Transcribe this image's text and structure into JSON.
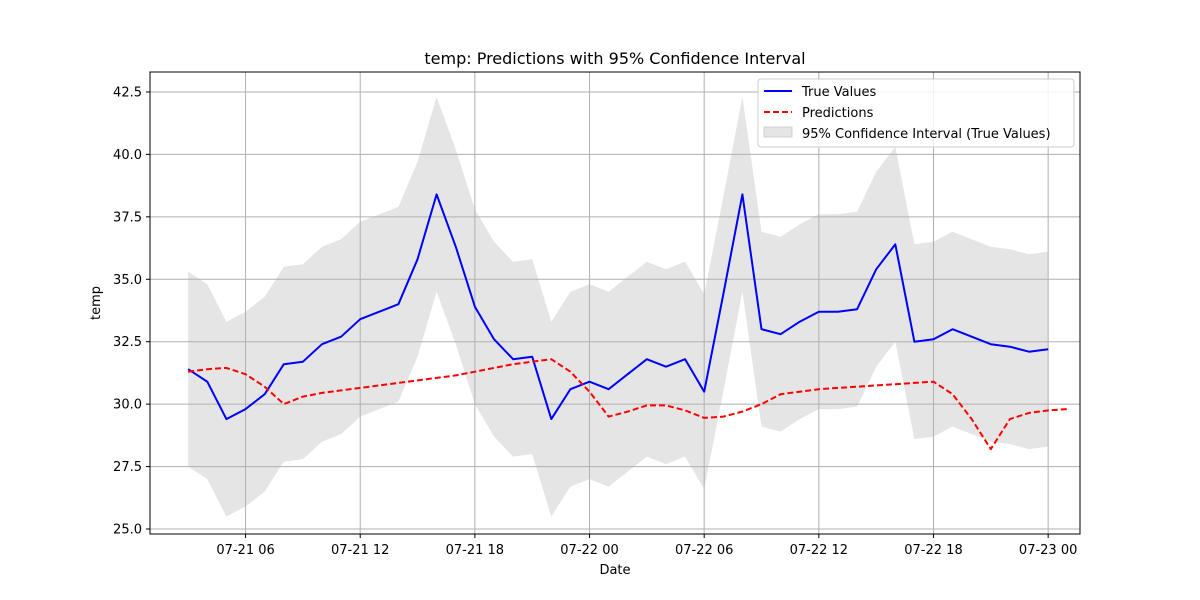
{
  "chart_data": {
    "type": "line",
    "title": "temp: Predictions with 95% Confidence Interval",
    "xlabel": "Date",
    "ylabel": "temp",
    "x_start": "2024-07-21T03:00",
    "x_interval_hours": 1,
    "xlim": [
      "2024-07-21T01:00",
      "2024-07-23T01:40"
    ],
    "ylim": [
      24.8,
      43.3
    ],
    "x_ticks": [
      {
        "at": "2024-07-21T06:00",
        "label": "07-21 06"
      },
      {
        "at": "2024-07-21T12:00",
        "label": "07-21 12"
      },
      {
        "at": "2024-07-21T18:00",
        "label": "07-21 18"
      },
      {
        "at": "2024-07-22T00:00",
        "label": "07-22 00"
      },
      {
        "at": "2024-07-22T06:00",
        "label": "07-22 06"
      },
      {
        "at": "2024-07-22T12:00",
        "label": "07-22 12"
      },
      {
        "at": "2024-07-22T18:00",
        "label": "07-22 18"
      },
      {
        "at": "2024-07-23T00:00",
        "label": "07-23 00"
      }
    ],
    "y_ticks": [
      {
        "value": 25.0,
        "label": "25.0"
      },
      {
        "value": 27.5,
        "label": "27.5"
      },
      {
        "value": 30.0,
        "label": "30.0"
      },
      {
        "value": 32.5,
        "label": "32.5"
      },
      {
        "value": 35.0,
        "label": "35.0"
      },
      {
        "value": 37.5,
        "label": "37.5"
      },
      {
        "value": 40.0,
        "label": "40.0"
      },
      {
        "value": 42.5,
        "label": "42.5"
      }
    ],
    "grid": true,
    "legend_position": "top-right",
    "series": [
      {
        "name": "True Values",
        "color": "#0000ff",
        "style": "solid",
        "values": [
          31.4,
          30.9,
          29.4,
          29.8,
          30.4,
          31.6,
          31.7,
          32.4,
          32.7,
          33.4,
          33.7,
          34.0,
          35.8,
          38.4,
          36.3,
          33.9,
          32.6,
          31.8,
          31.9,
          29.4,
          30.6,
          30.9,
          30.6,
          31.2,
          31.8,
          31.5,
          31.8,
          30.5,
          34.4,
          38.4,
          33.0,
          32.8,
          33.3,
          33.7,
          33.7,
          33.8,
          35.4,
          36.4,
          32.5,
          32.6,
          33.0,
          32.7,
          32.4,
          32.3,
          32.1,
          32.2
        ]
      },
      {
        "name": "Predictions",
        "color": "#ff0000",
        "style": "dashed",
        "values": [
          31.3,
          31.4,
          31.45,
          31.2,
          30.7,
          30.0,
          30.3,
          30.45,
          30.55,
          30.65,
          30.75,
          30.85,
          30.95,
          31.05,
          31.15,
          31.3,
          31.45,
          31.6,
          31.7,
          31.8,
          31.3,
          30.5,
          29.5,
          29.7,
          29.95,
          29.95,
          29.75,
          29.45,
          29.5,
          29.7,
          30.0,
          30.4,
          30.5,
          30.6,
          30.65,
          30.7,
          30.75,
          30.8,
          30.85,
          30.9,
          30.4,
          29.4,
          28.2,
          29.4,
          29.65,
          29.75,
          29.8
        ]
      }
    ],
    "band": {
      "name": "95% Confidence Interval (True Values)",
      "color": "#e5e5e5",
      "lower": [
        27.5,
        27.0,
        25.5,
        25.9,
        26.5,
        27.7,
        27.8,
        28.5,
        28.8,
        29.5,
        29.8,
        30.1,
        31.9,
        34.5,
        32.4,
        30.0,
        28.7,
        27.9,
        28.0,
        25.5,
        26.7,
        27.0,
        26.7,
        27.3,
        27.9,
        27.6,
        27.9,
        26.6,
        30.5,
        34.5,
        29.1,
        28.9,
        29.4,
        29.8,
        29.8,
        29.9,
        31.5,
        32.5,
        28.6,
        28.7,
        29.1,
        28.8,
        28.5,
        28.4,
        28.2,
        28.3
      ],
      "upper": [
        35.3,
        34.8,
        33.3,
        33.7,
        34.3,
        35.5,
        35.6,
        36.3,
        36.6,
        37.3,
        37.6,
        37.9,
        39.7,
        42.3,
        40.2,
        37.8,
        36.5,
        35.7,
        35.8,
        33.3,
        34.5,
        34.8,
        34.5,
        35.1,
        35.7,
        35.4,
        35.7,
        34.4,
        38.3,
        42.3,
        36.9,
        36.7,
        37.2,
        37.6,
        37.6,
        37.7,
        39.3,
        40.3,
        36.4,
        36.5,
        36.9,
        36.6,
        36.3,
        36.2,
        36.0,
        36.1
      ]
    }
  }
}
